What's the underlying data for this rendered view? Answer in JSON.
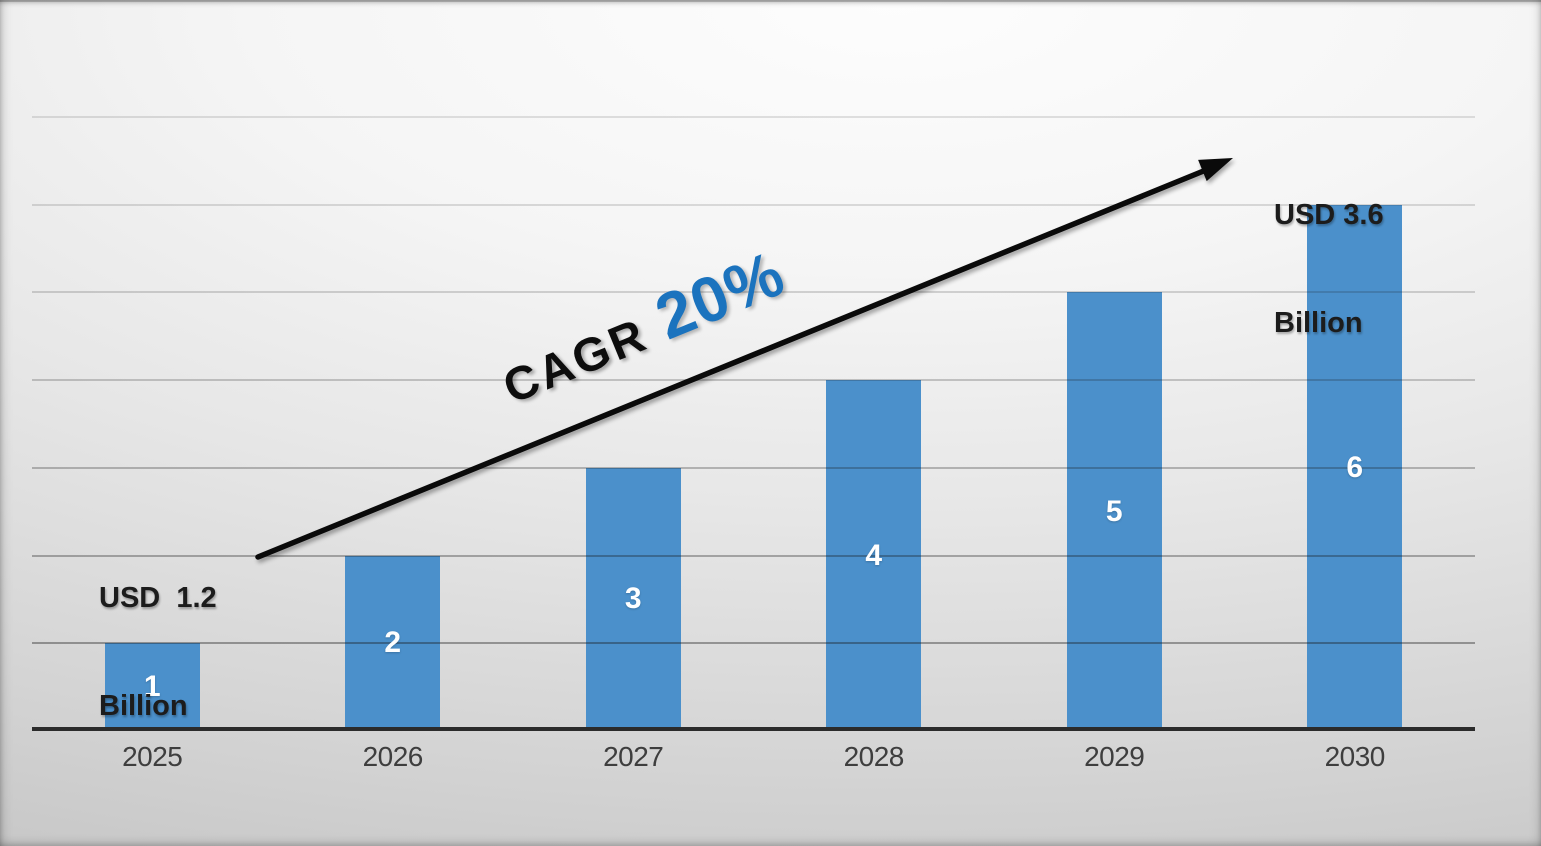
{
  "chart_data": {
    "type": "bar",
    "title": "",
    "xlabel": "",
    "ylabel": "",
    "categories": [
      "2025",
      "2026",
      "2027",
      "2028",
      "2029",
      "2030"
    ],
    "values": [
      1,
      2,
      3,
      4,
      5,
      6
    ],
    "bar_labels": [
      "1",
      "2",
      "3",
      "4",
      "5",
      "6"
    ],
    "ylim": [
      0,
      7
    ],
    "gridlines": {
      "orientation": "horizontal",
      "values": [
        1,
        2,
        3,
        4,
        5,
        6,
        7
      ]
    },
    "legend": "none",
    "bar_color": "#4B90CB",
    "bar_label_color": "#FFFFFF",
    "category_label_color": "#3E3E3E",
    "axis_line_color": "#2B2B2B",
    "gridline_base_color": "#191919",
    "trend_arrow_color": "#0A0A0A",
    "cagr": {
      "label": "CAGR",
      "value": "20%",
      "label_color": "#0D0D0D",
      "value_color": "#1B73BE"
    },
    "annotations": {
      "start": {
        "line1": "USD  1.2",
        "line2": "Billion",
        "full": "USD 1.2 Billion",
        "year": "2025",
        "value_usd_billion": 1.2
      },
      "end": {
        "line1": "USD 3.6",
        "line2": "Billion",
        "full": "USD 3.6 Billion",
        "year": "2030",
        "value_usd_billion": 3.6
      }
    }
  }
}
